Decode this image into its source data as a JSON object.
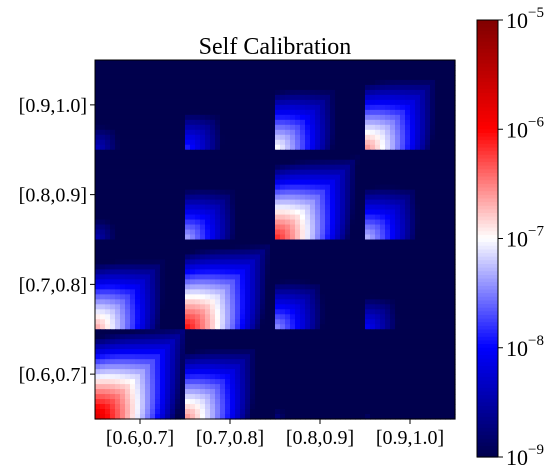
{
  "chart_data": {
    "type": "heatmap",
    "title": "Self Calibration",
    "xlabel": "",
    "ylabel": "",
    "x_tick_labels": [
      "[0.6,0.7]",
      "[0.7,0.8]",
      "[0.8,0.9]",
      "[0.9,1.0]"
    ],
    "y_tick_labels": [
      "[0.9,1.0]",
      "[0.8,0.9]",
      "[0.7,0.8]",
      "[0.6,0.7]"
    ],
    "colormap": "seismic",
    "color_scale": "log",
    "color_range": [
      1e-09,
      1e-05
    ],
    "colorbar_ticks": [
      {
        "value": 1e-05,
        "base": "10",
        "exp": "−5"
      },
      {
        "value": 1e-06,
        "base": "10",
        "exp": "−6"
      },
      {
        "value": 1e-07,
        "base": "10",
        "exp": "−7"
      },
      {
        "value": 1e-08,
        "base": "10",
        "exp": "−8"
      },
      {
        "value": 1e-09,
        "base": "10",
        "exp": "−9"
      }
    ],
    "block_peak_values": [
      [
        5e-09,
        1.5e-08,
        1.2e-07,
        3e-07
      ],
      [
        4e-09,
        5e-08,
        8e-07,
        6e-08
      ],
      [
        2.5e-07,
        1e-06,
        4e-08,
        1e-08
      ],
      [
        2e-06,
        3e-07,
        2e-09,
        1.5e-09
      ]
    ]
  },
  "colors": {
    "background": "#ffffff",
    "axis": "#000000"
  }
}
